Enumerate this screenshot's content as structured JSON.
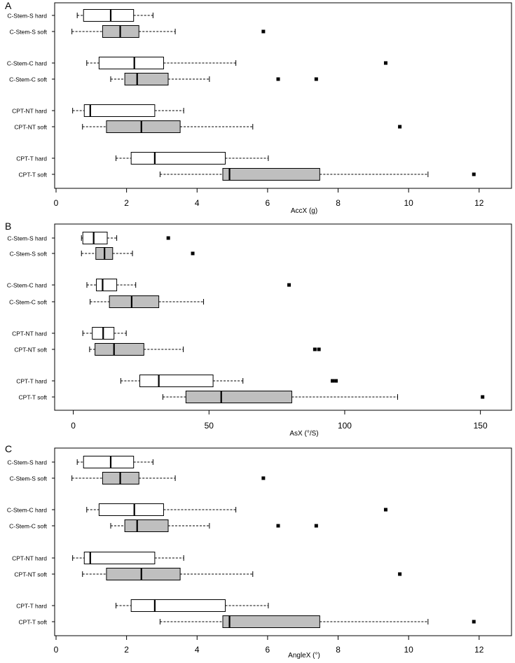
{
  "colors": {
    "hard_fill": "#ffffff",
    "soft_fill": "#bfbfbf",
    "stroke": "#000000",
    "outlier": "#000000",
    "background": "#ffffff"
  },
  "chart_data": [
    {
      "panel_label": "A",
      "type": "boxplot",
      "orientation": "horizontal",
      "xlabel": "AccX (g)",
      "xlim": [
        0,
        12.6
      ],
      "xticks": [
        0,
        2,
        4,
        6,
        8,
        10,
        12
      ],
      "xtick_labels": [
        "0",
        "2",
        "4",
        "6",
        "8",
        "10",
        "12"
      ],
      "groups": [
        {
          "label": "C-Stem-S hard",
          "condition": "hard",
          "whisker_low": 0.6,
          "q1": 0.78,
          "median": 1.55,
          "q3": 2.2,
          "whisker_high": 2.75,
          "outliers": []
        },
        {
          "label": "C-Stem-S soft",
          "condition": "soft",
          "whisker_low": 0.45,
          "q1": 1.32,
          "median": 1.82,
          "q3": 2.35,
          "whisker_high": 3.38,
          "outliers": [
            5.88
          ]
        },
        {
          "label": "C-Stem-C hard",
          "condition": "hard",
          "whisker_low": 0.87,
          "q1": 1.22,
          "median": 2.22,
          "q3": 3.05,
          "whisker_high": 5.1,
          "outliers": [
            9.35
          ]
        },
        {
          "label": "C-Stem-C soft",
          "condition": "soft",
          "whisker_low": 1.55,
          "q1": 1.95,
          "median": 2.3,
          "q3": 3.18,
          "whisker_high": 4.35,
          "outliers": [
            6.3,
            7.38
          ]
        },
        {
          "label": "CPT-NT hard",
          "condition": "hard",
          "whisker_low": 0.47,
          "q1": 0.8,
          "median": 0.97,
          "q3": 2.8,
          "whisker_high": 3.62,
          "outliers": []
        },
        {
          "label": "CPT-NT soft",
          "condition": "soft",
          "whisker_low": 0.75,
          "q1": 1.43,
          "median": 2.42,
          "q3": 3.52,
          "whisker_high": 5.58,
          "outliers": [
            9.75
          ]
        },
        {
          "label": "CPT-T hard",
          "condition": "hard",
          "whisker_low": 1.7,
          "q1": 2.13,
          "median": 2.8,
          "q3": 4.8,
          "whisker_high": 6.02,
          "outliers": []
        },
        {
          "label": "CPT-T soft",
          "condition": "soft",
          "whisker_low": 2.95,
          "q1": 4.73,
          "median": 4.92,
          "q3": 7.48,
          "whisker_high": 10.55,
          "outliers": [
            11.85
          ]
        }
      ]
    },
    {
      "panel_label": "B",
      "type": "boxplot",
      "orientation": "horizontal",
      "xlabel": "AsX (°/S)",
      "xlim": [
        -3,
        155
      ],
      "xticks": [
        0,
        50,
        100,
        150
      ],
      "xtick_labels": [
        "0",
        "50",
        "100",
        "150"
      ],
      "groups": [
        {
          "label": "C-Stem-S hard",
          "condition": "hard",
          "whisker_low": 3,
          "q1": 3.5,
          "median": 7.5,
          "q3": 12.5,
          "whisker_high": 16,
          "outliers": [
            35
          ]
        },
        {
          "label": "C-Stem-S soft",
          "condition": "soft",
          "whisker_low": 3,
          "q1": 8.3,
          "median": 11.5,
          "q3": 14.5,
          "whisker_high": 21.8,
          "outliers": [
            44
          ]
        },
        {
          "label": "C-Stem-C hard",
          "condition": "hard",
          "whisker_low": 5,
          "q1": 8.5,
          "median": 10.8,
          "q3": 16,
          "whisker_high": 23,
          "outliers": [
            79.5
          ]
        },
        {
          "label": "C-Stem-C soft",
          "condition": "soft",
          "whisker_low": 6.2,
          "q1": 13.3,
          "median": 21.5,
          "q3": 31.5,
          "whisker_high": 48,
          "outliers": []
        },
        {
          "label": "CPT-NT hard",
          "condition": "hard",
          "whisker_low": 3.5,
          "q1": 7,
          "median": 11,
          "q3": 15,
          "whisker_high": 19.5,
          "outliers": []
        },
        {
          "label": "CPT-NT soft",
          "condition": "soft",
          "whisker_low": 6,
          "q1": 8,
          "median": 15,
          "q3": 26,
          "whisker_high": 40.5,
          "outliers": [
            89,
            90.5
          ]
        },
        {
          "label": "CPT-T hard",
          "condition": "hard",
          "whisker_low": 17.5,
          "q1": 24.5,
          "median": 31.5,
          "q3": 51.5,
          "whisker_high": 62.5,
          "outliers": [
            95.5,
            96.8
          ]
        },
        {
          "label": "CPT-T soft",
          "condition": "soft",
          "whisker_low": 33,
          "q1": 41.5,
          "median": 54.5,
          "q3": 80.5,
          "whisker_high": 119.5,
          "outliers": [
            150.8
          ]
        }
      ]
    },
    {
      "panel_label": "C",
      "type": "boxplot",
      "orientation": "horizontal",
      "xlabel": "AngleX (°)",
      "xlim": [
        0,
        12.6
      ],
      "xticks": [
        0,
        2,
        4,
        6,
        8,
        10,
        12
      ],
      "xtick_labels": [
        "0",
        "2",
        "4",
        "6",
        "8",
        "10",
        "12"
      ],
      "groups": [
        {
          "label": "C-Stem-S hard",
          "condition": "hard",
          "whisker_low": 0.6,
          "q1": 0.78,
          "median": 1.55,
          "q3": 2.2,
          "whisker_high": 2.75,
          "outliers": []
        },
        {
          "label": "C-Stem-S soft",
          "condition": "soft",
          "whisker_low": 0.45,
          "q1": 1.32,
          "median": 1.82,
          "q3": 2.35,
          "whisker_high": 3.38,
          "outliers": [
            5.88
          ]
        },
        {
          "label": "C-Stem-C hard",
          "condition": "hard",
          "whisker_low": 0.87,
          "q1": 1.22,
          "median": 2.22,
          "q3": 3.05,
          "whisker_high": 5.1,
          "outliers": [
            9.35
          ]
        },
        {
          "label": "C-Stem-C soft",
          "condition": "soft",
          "whisker_low": 1.55,
          "q1": 1.95,
          "median": 2.3,
          "q3": 3.18,
          "whisker_high": 4.35,
          "outliers": [
            6.3,
            7.38
          ]
        },
        {
          "label": "CPT-NT hard",
          "condition": "hard",
          "whisker_low": 0.47,
          "q1": 0.8,
          "median": 0.97,
          "q3": 2.8,
          "whisker_high": 3.62,
          "outliers": []
        },
        {
          "label": "CPT-NT soft",
          "condition": "soft",
          "whisker_low": 0.75,
          "q1": 1.43,
          "median": 2.42,
          "q3": 3.52,
          "whisker_high": 5.58,
          "outliers": [
            9.75
          ]
        },
        {
          "label": "CPT-T hard",
          "condition": "hard",
          "whisker_low": 1.7,
          "q1": 2.13,
          "median": 2.8,
          "q3": 4.8,
          "whisker_high": 6.02,
          "outliers": []
        },
        {
          "label": "CPT-T soft",
          "condition": "soft",
          "whisker_low": 2.95,
          "q1": 4.73,
          "median": 4.92,
          "q3": 7.48,
          "whisker_high": 10.55,
          "outliers": [
            11.85
          ]
        }
      ]
    }
  ]
}
